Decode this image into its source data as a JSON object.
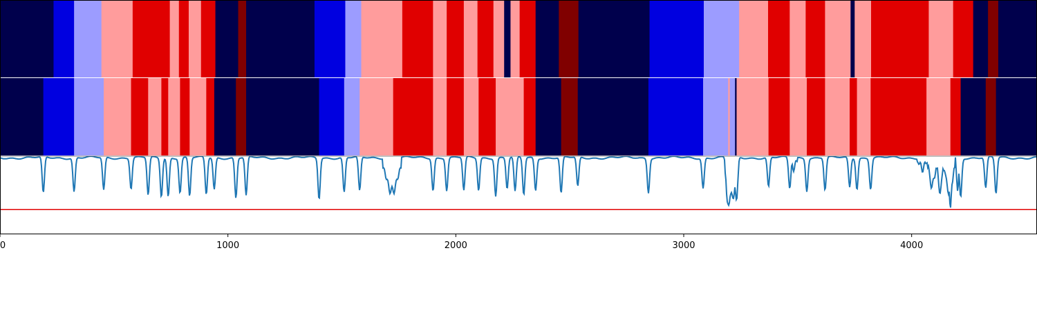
{
  "chart_data": [
    {
      "type": "heatmap",
      "panel": "segmentation-prediction",
      "xlim": [
        0,
        4550
      ],
      "palette": {
        "0": "#00004c",
        "1": "#0000e0",
        "2": "#9c9cff",
        "3": "#ff9c9c",
        "4": "#e00000",
        "5": "#800000"
      },
      "segments": [
        [
          0,
          235,
          0
        ],
        [
          235,
          325,
          1
        ],
        [
          325,
          445,
          2
        ],
        [
          445,
          582,
          3
        ],
        [
          582,
          745,
          4
        ],
        [
          745,
          785,
          3
        ],
        [
          785,
          828,
          4
        ],
        [
          828,
          882,
          3
        ],
        [
          882,
          945,
          4
        ],
        [
          945,
          1045,
          0
        ],
        [
          1045,
          1080,
          5
        ],
        [
          1080,
          1380,
          0
        ],
        [
          1380,
          1515,
          1
        ],
        [
          1515,
          1585,
          2
        ],
        [
          1585,
          1765,
          3
        ],
        [
          1765,
          1900,
          4
        ],
        [
          1900,
          1960,
          3
        ],
        [
          1960,
          2035,
          4
        ],
        [
          2035,
          2095,
          3
        ],
        [
          2095,
          2165,
          4
        ],
        [
          2165,
          2212,
          3
        ],
        [
          2212,
          2240,
          0
        ],
        [
          2240,
          2280,
          3
        ],
        [
          2280,
          2350,
          4
        ],
        [
          2350,
          2452,
          0
        ],
        [
          2452,
          2538,
          5
        ],
        [
          2538,
          2850,
          0
        ],
        [
          2850,
          3088,
          1
        ],
        [
          3088,
          3243,
          2
        ],
        [
          3243,
          3370,
          3
        ],
        [
          3370,
          3465,
          4
        ],
        [
          3465,
          3535,
          3
        ],
        [
          3535,
          3620,
          4
        ],
        [
          3620,
          3732,
          3
        ],
        [
          3732,
          3750,
          0
        ],
        [
          3750,
          3822,
          3
        ],
        [
          3822,
          4075,
          4
        ],
        [
          4075,
          4182,
          3
        ],
        [
          4182,
          4270,
          4
        ],
        [
          4270,
          4335,
          0
        ],
        [
          4335,
          4380,
          5
        ],
        [
          4380,
          4550,
          0
        ]
      ]
    },
    {
      "type": "heatmap",
      "panel": "segmentation-ground-truth",
      "xlim": [
        0,
        4550
      ],
      "segments": [
        [
          0,
          190,
          0
        ],
        [
          190,
          325,
          1
        ],
        [
          325,
          455,
          2
        ],
        [
          455,
          575,
          3
        ],
        [
          575,
          650,
          4
        ],
        [
          650,
          708,
          3
        ],
        [
          708,
          738,
          4
        ],
        [
          738,
          790,
          3
        ],
        [
          790,
          832,
          4
        ],
        [
          832,
          905,
          3
        ],
        [
          905,
          940,
          4
        ],
        [
          940,
          1035,
          0
        ],
        [
          1035,
          1080,
          5
        ],
        [
          1080,
          1400,
          0
        ],
        [
          1400,
          1510,
          1
        ],
        [
          1510,
          1578,
          2
        ],
        [
          1578,
          1725,
          3
        ],
        [
          1725,
          1900,
          4
        ],
        [
          1900,
          1960,
          3
        ],
        [
          1960,
          2035,
          4
        ],
        [
          2035,
          2100,
          3
        ],
        [
          2100,
          2175,
          4
        ],
        [
          2175,
          2298,
          3
        ],
        [
          2298,
          2350,
          4
        ],
        [
          2350,
          2462,
          0
        ],
        [
          2462,
          2535,
          5
        ],
        [
          2535,
          2845,
          0
        ],
        [
          2845,
          3085,
          1
        ],
        [
          3085,
          3195,
          2
        ],
        [
          3195,
          3202,
          3
        ],
        [
          3202,
          3225,
          2
        ],
        [
          3225,
          3232,
          0
        ],
        [
          3232,
          3372,
          3
        ],
        [
          3372,
          3465,
          4
        ],
        [
          3465,
          3540,
          3
        ],
        [
          3540,
          3620,
          4
        ],
        [
          3620,
          3728,
          3
        ],
        [
          3728,
          3760,
          4
        ],
        [
          3760,
          3820,
          3
        ],
        [
          3820,
          4065,
          4
        ],
        [
          4065,
          4170,
          3
        ],
        [
          4170,
          4215,
          4
        ],
        [
          4215,
          4325,
          0
        ],
        [
          4325,
          4370,
          5
        ],
        [
          4370,
          4550,
          0
        ]
      ]
    },
    {
      "type": "line",
      "panel": "probability-trace",
      "xlim": [
        0,
        4550
      ],
      "ylim": [
        0,
        1
      ],
      "xticks": [
        "0",
        "1000",
        "2000",
        "3000",
        "4000"
      ],
      "xtick_values": [
        0,
        1000,
        2000,
        3000,
        4000
      ],
      "threshold": 0.31,
      "line_color": "#1f77b4",
      "threshold_color": "#e00000",
      "baseline": 0.98,
      "dips": [
        [
          190,
          0.51
        ],
        [
          325,
          0.54
        ],
        [
          455,
          0.56
        ],
        [
          575,
          0.58
        ],
        [
          650,
          0.49
        ],
        [
          708,
          0.48
        ],
        [
          738,
          0.48
        ],
        [
          790,
          0.53
        ],
        [
          832,
          0.48
        ],
        [
          905,
          0.5
        ],
        [
          940,
          0.57
        ],
        [
          1035,
          0.46
        ],
        [
          1080,
          0.48
        ],
        [
          1400,
          0.45
        ],
        [
          1510,
          0.53
        ],
        [
          1578,
          0.54
        ],
        [
          1900,
          0.56
        ],
        [
          1960,
          0.56
        ],
        [
          2035,
          0.55
        ],
        [
          2100,
          0.56
        ],
        [
          2175,
          0.49
        ],
        [
          2225,
          0.58
        ],
        [
          2260,
          0.53
        ],
        [
          2298,
          0.5
        ],
        [
          2350,
          0.56
        ],
        [
          2462,
          0.51
        ],
        [
          2535,
          0.6
        ],
        [
          2845,
          0.54
        ],
        [
          3085,
          0.59
        ],
        [
          3190,
          0.5
        ],
        [
          3200,
          0.45
        ],
        [
          3218,
          0.46
        ],
        [
          3232,
          0.42
        ],
        [
          3372,
          0.6
        ],
        [
          3465,
          0.58
        ],
        [
          3540,
          0.56
        ],
        [
          3620,
          0.56
        ],
        [
          3728,
          0.6
        ],
        [
          3760,
          0.58
        ],
        [
          3820,
          0.58
        ],
        [
          4170,
          0.33
        ],
        [
          4215,
          0.48
        ],
        [
          4325,
          0.58
        ],
        [
          4370,
          0.51
        ]
      ],
      "humps": [
        [
          1680,
          1760,
          0.55
        ],
        [
          3180,
          3240,
          0.47
        ],
        [
          3225,
          3232,
          0.42
        ],
        [
          3460,
          3500,
          0.86
        ],
        [
          4025,
          4070,
          0.85
        ],
        [
          4070,
          4110,
          0.63
        ],
        [
          4110,
          4140,
          0.57
        ],
        [
          4140,
          4190,
          0.56
        ],
        [
          4195,
          4210,
          0.58
        ]
      ]
    }
  ]
}
